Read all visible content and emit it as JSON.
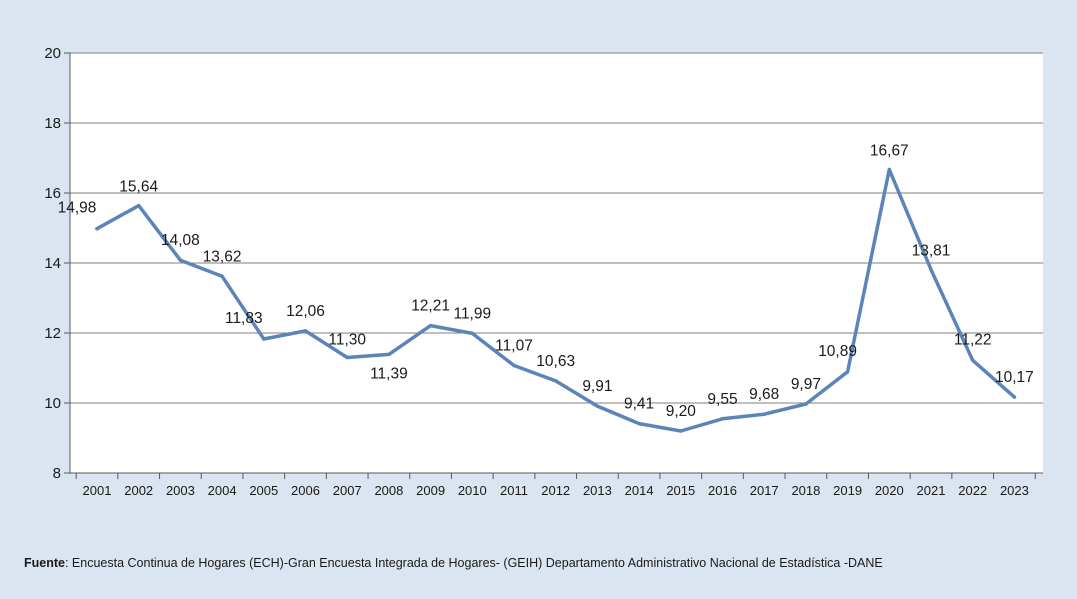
{
  "chart_data": {
    "type": "line",
    "title": "",
    "xlabel": "",
    "ylabel": "",
    "ylim": [
      8,
      20
    ],
    "yticks": [
      8,
      10,
      12,
      14,
      16,
      18,
      20
    ],
    "grid": true,
    "legend": "none",
    "categories": [
      "2001",
      "2002",
      "2003",
      "2004",
      "2005",
      "2006",
      "2007",
      "2008",
      "2009",
      "2010",
      "2011",
      "2012",
      "2013",
      "2014",
      "2015",
      "2016",
      "2017",
      "2018",
      "2019",
      "2020",
      "2021",
      "2022",
      "2023"
    ],
    "series": [
      {
        "values": [
          14.98,
          15.64,
          14.08,
          13.62,
          11.83,
          12.06,
          11.3,
          11.39,
          12.21,
          11.99,
          11.07,
          10.63,
          9.91,
          9.41,
          9.2,
          9.55,
          9.68,
          9.97,
          10.89,
          16.67,
          13.81,
          11.22,
          10.17
        ],
        "data_labels": [
          "14,98",
          "15,64",
          "14,08",
          "13,62",
          "11,83",
          "12,06",
          "11,30",
          "11,39",
          "12,21",
          "11,99",
          "11,07",
          "10,63",
          "9,91",
          "9,41",
          "9,20",
          "9,55",
          "9,68",
          "9,97",
          "10,89",
          "16,67",
          "13,81",
          "11,22",
          "10,17"
        ],
        "color": "#5b85b8"
      }
    ]
  },
  "colors": {
    "background": "#dbe5f1",
    "plot_area": "#ffffff",
    "line": "#5b85b8",
    "grid": "#7f7f7f"
  },
  "source": {
    "label": "Fuente",
    "text": ": Encuesta Continua de Hogares (ECH)-Gran Encuesta Integrada de Hogares- (GEIH) Departamento Administrativo Nacional de Estadística -DANE"
  }
}
